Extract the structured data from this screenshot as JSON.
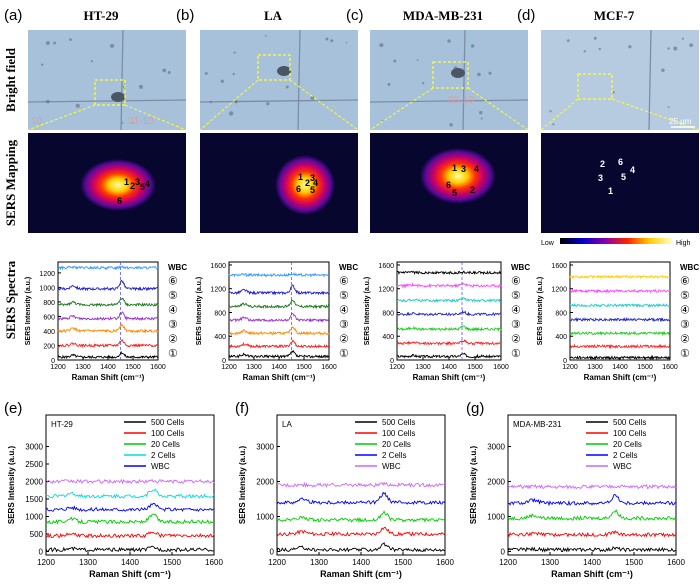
{
  "figure": {
    "panel_letters": [
      "(a)",
      "(b)",
      "(c)",
      "(d)",
      "(e)",
      "(f)",
      "(g)"
    ],
    "cell_lines": [
      "HT-29",
      "LA",
      "MDA-MB-231",
      "MCF-7"
    ],
    "row_labels": [
      "Bright field",
      "SERS Mapping",
      "SERS Spectra"
    ],
    "spot_labels": [
      "1",
      "2",
      "3",
      "4",
      "5",
      "6"
    ],
    "scale_bar": "25 μm",
    "colorbar": {
      "low": "Low",
      "high": "High"
    },
    "stack_labels": [
      "WBC",
      "⑥",
      "⑤",
      "④",
      "③",
      "②",
      "①"
    ],
    "bf_grid_marks": [
      "10",
      "01-10",
      "03-10"
    ],
    "colors": {
      "bright_field_bg": "#a9c4dd",
      "mapping_bg": "#06062e",
      "zoom_box": "#ffff33"
    }
  },
  "chart_data": [
    {
      "type": "line",
      "panel": "(a)",
      "xlabel": "Raman Shift (cm⁻¹)",
      "ylabel": "SERS Intensity (a.u.)",
      "xlim": [
        1200,
        1600
      ],
      "ylim": [
        0,
        1350
      ],
      "xticks": [
        1200,
        1300,
        1400,
        1500,
        1600
      ],
      "yticks": [
        0,
        200,
        400,
        600,
        800,
        1000,
        1200
      ],
      "marker_x": 1450,
      "series": [
        {
          "name": "①",
          "color": "#000000",
          "base": 40,
          "peak": 60
        },
        {
          "name": "②",
          "color": "#ff2020",
          "base": 200,
          "peak": 70
        },
        {
          "name": "③",
          "color": "#ff8800",
          "base": 400,
          "peak": 90
        },
        {
          "name": "④",
          "color": "#9933cc",
          "base": 570,
          "peak": 80
        },
        {
          "name": "⑤",
          "color": "#1a7a1a",
          "base": 760,
          "peak": 90
        },
        {
          "name": "⑥",
          "color": "#2222cc",
          "base": 980,
          "peak": 110
        },
        {
          "name": "WBC",
          "color": "#3399ff",
          "base": 1270,
          "peak": 20
        }
      ]
    },
    {
      "type": "line",
      "panel": "(b)",
      "xlabel": "Raman Shift (cm⁻¹)",
      "ylabel": "SERS Intensity (a.u.)",
      "xlim": [
        1200,
        1600
      ],
      "ylim": [
        0,
        1650
      ],
      "xticks": [
        1200,
        1300,
        1400,
        1500,
        1600
      ],
      "yticks": [
        0,
        400,
        800,
        1200,
        1600
      ],
      "marker_x": 1450,
      "series": [
        {
          "name": "①",
          "color": "#000000",
          "base": 60,
          "peak": 80
        },
        {
          "name": "②",
          "color": "#ff2020",
          "base": 230,
          "peak": 90
        },
        {
          "name": "③",
          "color": "#ff8800",
          "base": 450,
          "peak": 110
        },
        {
          "name": "④",
          "color": "#9933cc",
          "base": 670,
          "peak": 100
        },
        {
          "name": "⑤",
          "color": "#1a7a1a",
          "base": 900,
          "peak": 110
        },
        {
          "name": "⑥",
          "color": "#2222cc",
          "base": 1130,
          "peak": 120
        },
        {
          "name": "WBC",
          "color": "#3399ff",
          "base": 1430,
          "peak": 20
        }
      ]
    },
    {
      "type": "line",
      "panel": "(c)",
      "xlabel": "Raman Shift (cm⁻¹)",
      "ylabel": "SERS Intensity (a.u.)",
      "xlim": [
        1200,
        1600
      ],
      "ylim": [
        0,
        1650
      ],
      "xticks": [
        1200,
        1300,
        1400,
        1500,
        1600
      ],
      "yticks": [
        0,
        400,
        800,
        1200,
        1600
      ],
      "marker_x": 1450,
      "series": [
        {
          "name": "①",
          "color": "#000000",
          "base": 60,
          "peak": 40
        },
        {
          "name": "②",
          "color": "#ff2020",
          "base": 280,
          "peak": 50
        },
        {
          "name": "③",
          "color": "#22cc22",
          "base": 520,
          "peak": 50
        },
        {
          "name": "④",
          "color": "#2222cc",
          "base": 770,
          "peak": 40
        },
        {
          "name": "⑤",
          "color": "#22cccc",
          "base": 1000,
          "peak": 40
        },
        {
          "name": "⑥",
          "color": "#ff44ff",
          "base": 1250,
          "peak": 40
        },
        {
          "name": "WBC",
          "color": "#000000",
          "base": 1470,
          "peak": 10
        }
      ]
    },
    {
      "type": "line",
      "panel": "(d)",
      "xlabel": "Raman Shift (cm⁻¹)",
      "ylabel": "SERS Intensity (a.u.)",
      "xlim": [
        1200,
        1600
      ],
      "ylim": [
        0,
        1650
      ],
      "xticks": [
        1200,
        1300,
        1400,
        1500,
        1600
      ],
      "yticks": [
        0,
        400,
        800,
        1200,
        1600
      ],
      "series": [
        {
          "name": "①",
          "color": "#000000",
          "base": 40,
          "peak": 0
        },
        {
          "name": "②",
          "color": "#ff2020",
          "base": 230,
          "peak": 0
        },
        {
          "name": "③",
          "color": "#22cc22",
          "base": 450,
          "peak": 0
        },
        {
          "name": "④",
          "color": "#2222cc",
          "base": 680,
          "peak": 0
        },
        {
          "name": "⑤",
          "color": "#22cccc",
          "base": 920,
          "peak": 0
        },
        {
          "name": "⑥",
          "color": "#ff44ff",
          "base": 1160,
          "peak": 0
        },
        {
          "name": "WBC",
          "color": "#ffcc00",
          "base": 1400,
          "peak": 0
        }
      ]
    },
    {
      "type": "line",
      "panel": "(e)",
      "title": "HT-29",
      "xlabel": "Raman Shift (cm⁻¹)",
      "ylabel": "SERS Intensity (a.u.)",
      "xlim": [
        1200,
        1600
      ],
      "ylim": [
        -100,
        3900
      ],
      "xticks": [
        1200,
        1300,
        1400,
        1500,
        1600
      ],
      "yticks": [
        0,
        500,
        1000,
        1500,
        2000,
        2500,
        3000
      ],
      "series": [
        {
          "name": "500  Cells",
          "color": "#000000",
          "base": 50,
          "peak": 70
        },
        {
          "name": "100  Cells",
          "color": "#ff0000",
          "base": 450,
          "peak": 120
        },
        {
          "name": "20   Cells",
          "color": "#00cc00",
          "base": 850,
          "peak": 200
        },
        {
          "name": "2    Cells",
          "color": "#00dddd",
          "base": 1580,
          "peak": 200
        },
        {
          "name": "WBC",
          "color": "#0000ff",
          "base": 1200,
          "peak": 150
        },
        {
          "name": "",
          "color": "#cc66ff",
          "base": 2000,
          "peak": 20
        }
      ]
    },
    {
      "type": "line",
      "panel": "(f)",
      "title": "LA",
      "xlabel": "Raman Shift (cm⁻¹)",
      "ylabel": "SERS Intensity (a.u.)",
      "xlim": [
        1200,
        1600
      ],
      "ylim": [
        -100,
        3900
      ],
      "xticks": [
        1200,
        1300,
        1400,
        1500,
        1600
      ],
      "yticks": [
        0,
        1000,
        2000,
        3000
      ],
      "series": [
        {
          "name": "500  Cells",
          "color": "#000000",
          "base": 50,
          "peak": 150
        },
        {
          "name": "100  Cells",
          "color": "#ff0000",
          "base": 500,
          "peak": 180
        },
        {
          "name": "20   Cells",
          "color": "#00cc00",
          "base": 900,
          "peak": 200
        },
        {
          "name": "2    Cells",
          "color": "#0000ff",
          "base": 1400,
          "peak": 250
        },
        {
          "name": "WBC",
          "color": "#cc66ff",
          "base": 1900,
          "peak": 20
        }
      ]
    },
    {
      "type": "line",
      "panel": "(g)",
      "title": "MDA-MB-231",
      "xlabel": "Raman Shift (cm⁻¹)",
      "ylabel": "SERS Intensity (a.u.)",
      "xlim": [
        1200,
        1600
      ],
      "ylim": [
        -100,
        3900
      ],
      "xticks": [
        1200,
        1300,
        1400,
        1500,
        1600
      ],
      "yticks": [
        0,
        1000,
        2000,
        3000
      ],
      "series": [
        {
          "name": "500  Cells",
          "color": "#000000",
          "base": 50,
          "peak": 40
        },
        {
          "name": "100  Cells",
          "color": "#ff0000",
          "base": 480,
          "peak": 80
        },
        {
          "name": "20   Cells",
          "color": "#00cc00",
          "base": 950,
          "peak": 200
        },
        {
          "name": "2    Cells",
          "color": "#0000ff",
          "base": 1380,
          "peak": 220
        },
        {
          "name": "WBC",
          "color": "#cc66ff",
          "base": 1850,
          "peak": 20
        }
      ]
    }
  ]
}
